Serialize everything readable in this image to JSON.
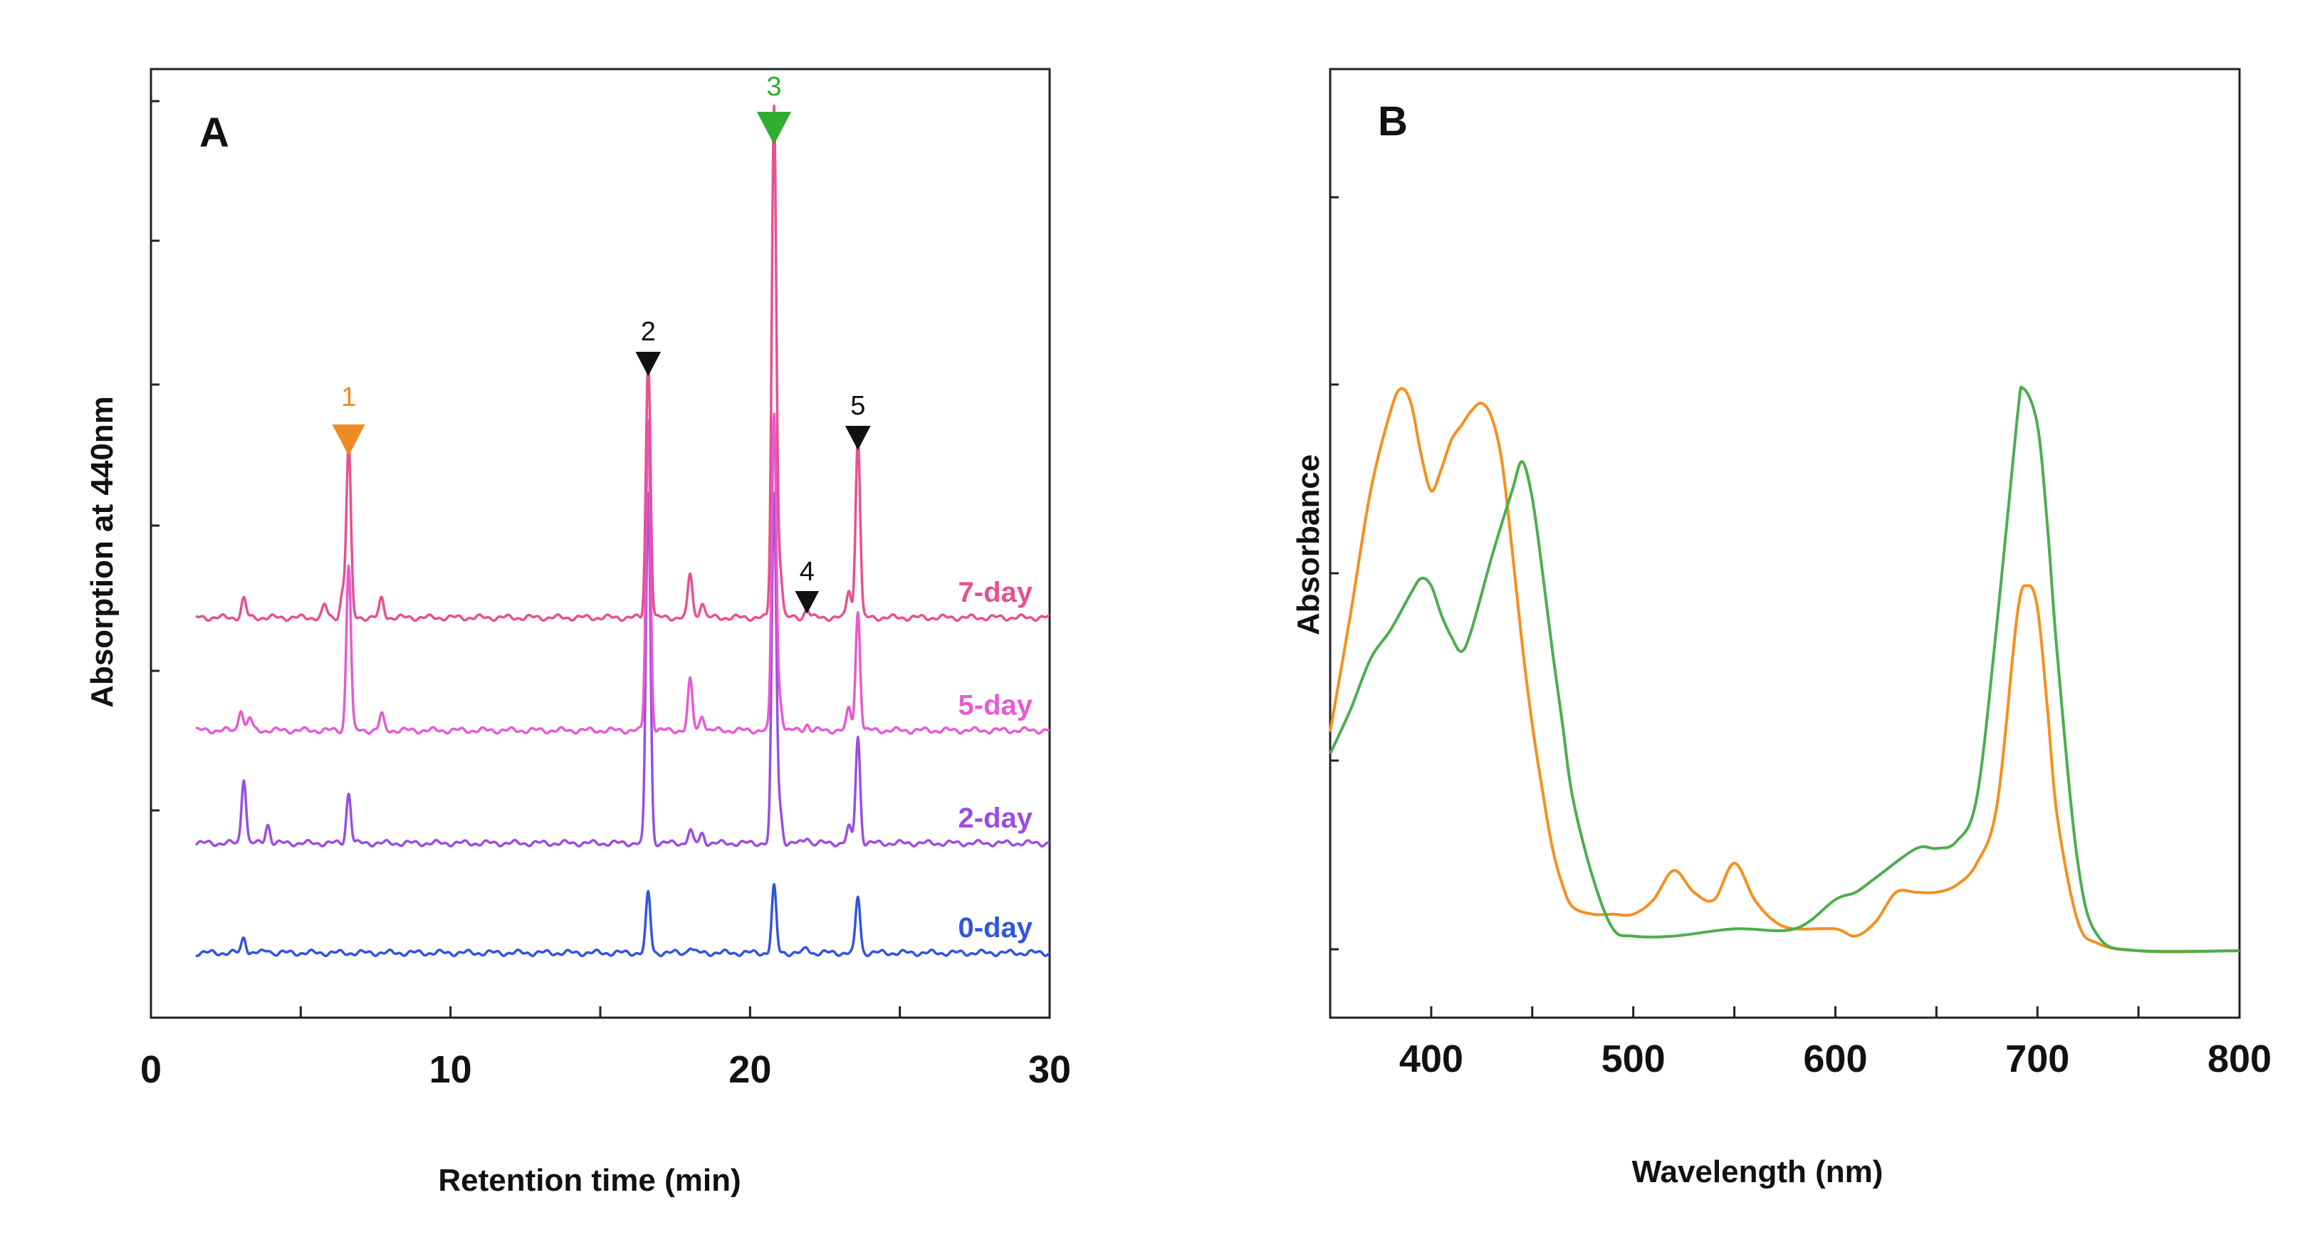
{
  "chart_data": [
    {
      "type": "line",
      "panel": "A",
      "xlabel": "Retention time (min)",
      "ylabel": "Absorption at 440nm",
      "xlim": [
        0,
        30
      ],
      "xticks": [
        0,
        10,
        20,
        30
      ],
      "grid": false,
      "peaks": [
        {
          "label": "1",
          "x": 6.6,
          "color": "#f08a24"
        },
        {
          "label": "2",
          "x": 16.6,
          "color": "#111111"
        },
        {
          "label": "3",
          "x": 20.8,
          "color": "#2fae2f"
        },
        {
          "label": "4",
          "x": 21.9,
          "color": "#111111"
        },
        {
          "label": "5",
          "x": 23.6,
          "color": "#111111"
        }
      ],
      "series": [
        {
          "name": "0-day",
          "color": "#2f55e0",
          "baseline": 0,
          "peaks": [
            [
              3.1,
              5
            ],
            [
              3.9,
              1
            ],
            [
              16.6,
              19
            ],
            [
              18.0,
              2
            ],
            [
              20.8,
              21
            ],
            [
              21.9,
              1.5
            ],
            [
              23.6,
              18
            ]
          ]
        },
        {
          "name": "2-day",
          "color": "#9b4de3",
          "baseline": 35,
          "peaks": [
            [
              3.1,
              21
            ],
            [
              3.9,
              6
            ],
            [
              6.6,
              16
            ],
            [
              16.6,
              112
            ],
            [
              18.0,
              4
            ],
            [
              18.4,
              3
            ],
            [
              20.8,
              111
            ],
            [
              21.0,
              10
            ],
            [
              21.9,
              2
            ],
            [
              23.3,
              5
            ],
            [
              23.6,
              34
            ]
          ]
        },
        {
          "name": "5-day",
          "color": "#e85ad2",
          "baseline": 71,
          "peaks": [
            [
              3.0,
              7
            ],
            [
              3.3,
              4
            ],
            [
              6.6,
              53
            ],
            [
              7.7,
              5
            ],
            [
              16.6,
              99
            ],
            [
              18.0,
              16
            ],
            [
              18.4,
              5
            ],
            [
              20.8,
              101
            ],
            [
              21.0,
              9
            ],
            [
              21.9,
              2
            ],
            [
              23.3,
              7
            ],
            [
              23.6,
              38
            ]
          ]
        },
        {
          "name": "7-day",
          "color": "#e8508e",
          "baseline": 107,
          "peaks": [
            [
              3.1,
              6
            ],
            [
              5.8,
              4
            ],
            [
              6.4,
              8
            ],
            [
              6.6,
              55
            ],
            [
              7.7,
              6
            ],
            [
              16.6,
              83
            ],
            [
              18.0,
              14
            ],
            [
              18.4,
              5
            ],
            [
              20.8,
              163
            ],
            [
              21.0,
              15
            ],
            [
              21.9,
              3
            ],
            [
              23.3,
              9
            ],
            [
              23.6,
              58
            ]
          ]
        }
      ]
    },
    {
      "type": "line",
      "panel": "B",
      "xlabel": "Wavelength (nm)",
      "ylabel": "Absorbance",
      "xlim": [
        350,
        800
      ],
      "xticks": [
        400,
        500,
        600,
        700,
        800
      ],
      "ylim": [
        0,
        100
      ],
      "grid": false,
      "series": [
        {
          "name": "orange spectrum",
          "color": "#f5901e",
          "x": [
            350,
            360,
            370,
            380,
            385,
            390,
            395,
            400,
            405,
            410,
            415,
            420,
            425,
            430,
            435,
            440,
            445,
            450,
            455,
            460,
            465,
            470,
            480,
            490,
            500,
            510,
            520,
            530,
            540,
            550,
            560,
            570,
            580,
            600,
            610,
            620,
            630,
            640,
            650,
            660,
            670,
            680,
            690,
            695,
            700,
            705,
            710,
            720,
            730,
            750,
            800
          ],
          "y": [
            30,
            46,
            63,
            74,
            77,
            75,
            68,
            63,
            66,
            70,
            72,
            74,
            75,
            73,
            67,
            55,
            42,
            31,
            22,
            14,
            9,
            6,
            5,
            5,
            5,
            7,
            11,
            8,
            7,
            12,
            7,
            4,
            3,
            3,
            2,
            4,
            8,
            8,
            8,
            9,
            12,
            20,
            46,
            50,
            47,
            33,
            18,
            4,
            1,
            0,
            0
          ]
        },
        {
          "name": "green spectrum",
          "color": "#4caf4c",
          "x": [
            350,
            360,
            370,
            380,
            390,
            395,
            400,
            405,
            410,
            415,
            420,
            430,
            440,
            445,
            450,
            455,
            460,
            465,
            470,
            480,
            490,
            500,
            520,
            550,
            580,
            600,
            610,
            620,
            640,
            650,
            660,
            670,
            680,
            690,
            693,
            700,
            705,
            710,
            720,
            730,
            750,
            800
          ],
          "y": [
            27,
            33,
            40,
            44,
            49,
            51,
            50,
            46,
            43,
            41,
            44,
            54,
            63,
            67,
            62,
            52,
            41,
            31,
            21,
            10,
            3,
            2,
            2,
            3,
            3,
            7,
            8,
            10,
            14,
            14,
            15,
            21,
            45,
            73,
            77,
            72,
            58,
            40,
            12,
            2,
            0,
            0
          ]
        }
      ]
    }
  ]
}
